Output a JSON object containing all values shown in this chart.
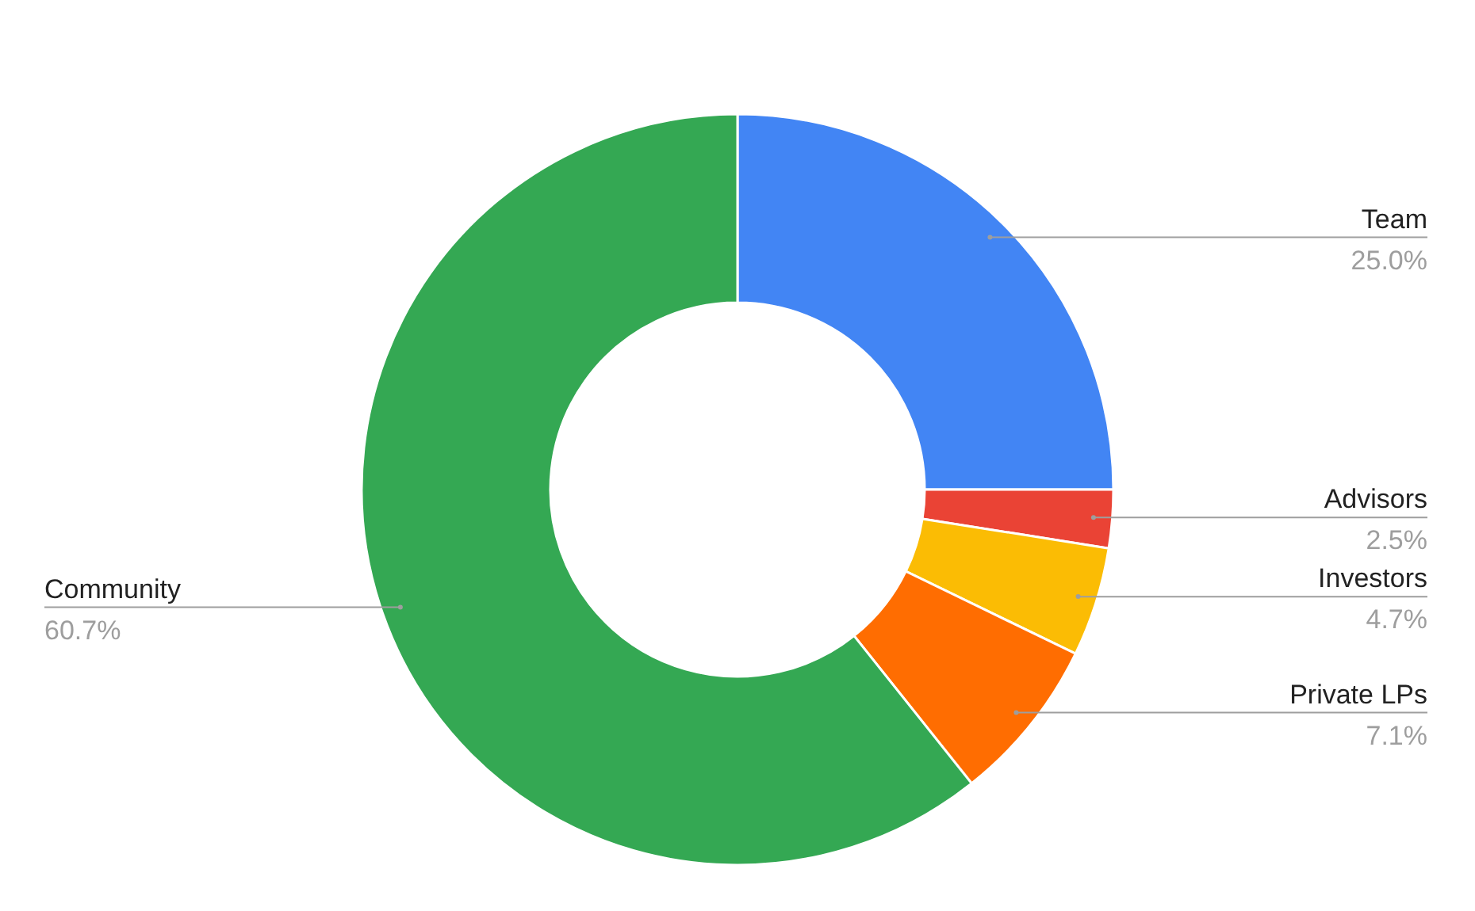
{
  "chart_data": {
    "type": "donut",
    "categories": [
      "Team",
      "Advisors",
      "Investors",
      "Private LPs",
      "Community"
    ],
    "values": [
      25.0,
      2.5,
      4.7,
      7.1,
      60.7
    ],
    "colors": [
      "#4285f4",
      "#ea4335",
      "#fbbc04",
      "#ff6d01",
      "#34a853"
    ],
    "value_labels": [
      "25.0%",
      "2.5%",
      "4.7%",
      "7.1%",
      "60.7%"
    ]
  }
}
